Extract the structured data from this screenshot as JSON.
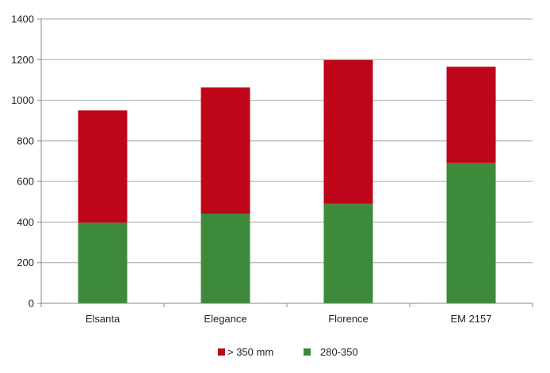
{
  "chart_data": {
    "type": "bar",
    "stacked": true,
    "title": "",
    "xlabel": "",
    "ylabel": "",
    "categories": [
      "Elsanta",
      "Elegance",
      "Florence",
      "EM 2157"
    ],
    "series": [
      {
        "name": "280-350",
        "color": "#3c8a3a",
        "values": [
          397,
          441,
          490,
          691
        ]
      },
      {
        "name": "> 350 mm",
        "color": "#be0519",
        "values": [
          553,
          622,
          708,
          474
        ]
      }
    ],
    "ylim": [
      0,
      1400
    ],
    "yticks": [
      "0",
      "200",
      "400",
      "600",
      "800",
      "1000",
      "1200",
      "1400"
    ],
    "grid": true,
    "legend": {
      "position": "bottom",
      "order": [
        "> 350 mm",
        "280-350"
      ]
    }
  }
}
